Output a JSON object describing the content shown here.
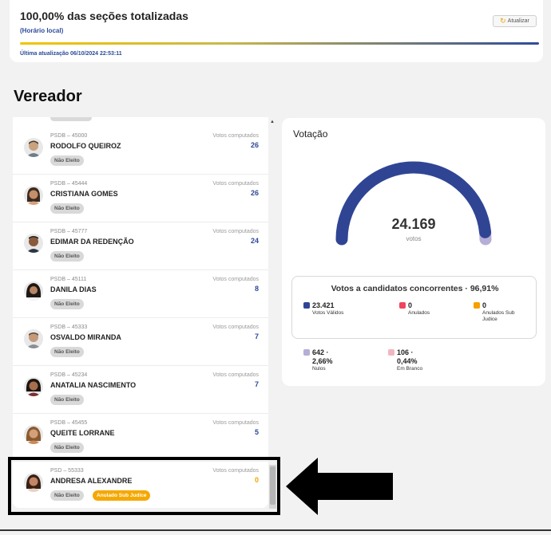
{
  "status": {
    "title": "100,00% das seções totalizadas",
    "subtitle": "(Horário local)",
    "refresh_label": "Atualizar",
    "last_update": "Última atualização 06/10/2024 22:53:11"
  },
  "section_title": "Vereador",
  "candidates": [
    {
      "party": "PSDB – 45000",
      "name": "RODOLFO QUEIROZ",
      "votes_label": "Votos computados",
      "votes": "26",
      "status": "Não Eleito"
    },
    {
      "party": "PSDB – 45444",
      "name": "CRISTIANA GOMES",
      "votes_label": "Votos computados",
      "votes": "26",
      "status": "Não Eleito"
    },
    {
      "party": "PSDB – 45777",
      "name": "EDIMAR DA REDENÇÃO",
      "votes_label": "Votos computados",
      "votes": "24",
      "status": "Não Eleito"
    },
    {
      "party": "PSDB – 45111",
      "name": "DANILA DIAS",
      "votes_label": "Votos computados",
      "votes": "8",
      "status": "Não Eleito"
    },
    {
      "party": "PSDB – 45333",
      "name": "OSVALDO MIRANDA",
      "votes_label": "Votos computados",
      "votes": "7",
      "status": "Não Eleito"
    },
    {
      "party": "PSDB – 45234",
      "name": "ANATALIA NASCIMENTO",
      "votes_label": "Votos computados",
      "votes": "7",
      "status": "Não Eleito"
    },
    {
      "party": "PSDB – 45455",
      "name": "QUEITE LORRANE",
      "votes_label": "Votos computados",
      "votes": "5",
      "status": "Não Eleito"
    },
    {
      "party": "PSD – 55333",
      "name": "ANDRESA ALEXANDRE",
      "votes_label": "Votos computados",
      "votes": "0",
      "status": "Não Eleito",
      "extra_status": "Anulado Sub Judice"
    }
  ],
  "voting": {
    "title": "Votação",
    "total": "24.169",
    "total_label": "votos",
    "valid_fraction": 0.9691,
    "breakdown_title": "Votos a candidatos concorrentes · 96,91%",
    "stats": [
      {
        "value": "23.421",
        "label": "Votos Válidos",
        "color": "#2f4594"
      },
      {
        "value": "0",
        "label": "Anulados",
        "color": "#f0455f"
      },
      {
        "value": "0",
        "label": "Anulados Sub Judice",
        "color": "#f5a000"
      },
      {
        "value": "642 · 2,66%",
        "label": "Nulos",
        "color": "#b6aed6"
      },
      {
        "value": "106 · 0,44%",
        "label": "Em Branco",
        "color": "#f2b6c0"
      }
    ]
  },
  "colors": {
    "brand_blue": "#2b4a9b",
    "gauge_main": "#2f4594",
    "gauge_rest": "#b6aed6",
    "sub_judice_badge": "#f5a800"
  }
}
